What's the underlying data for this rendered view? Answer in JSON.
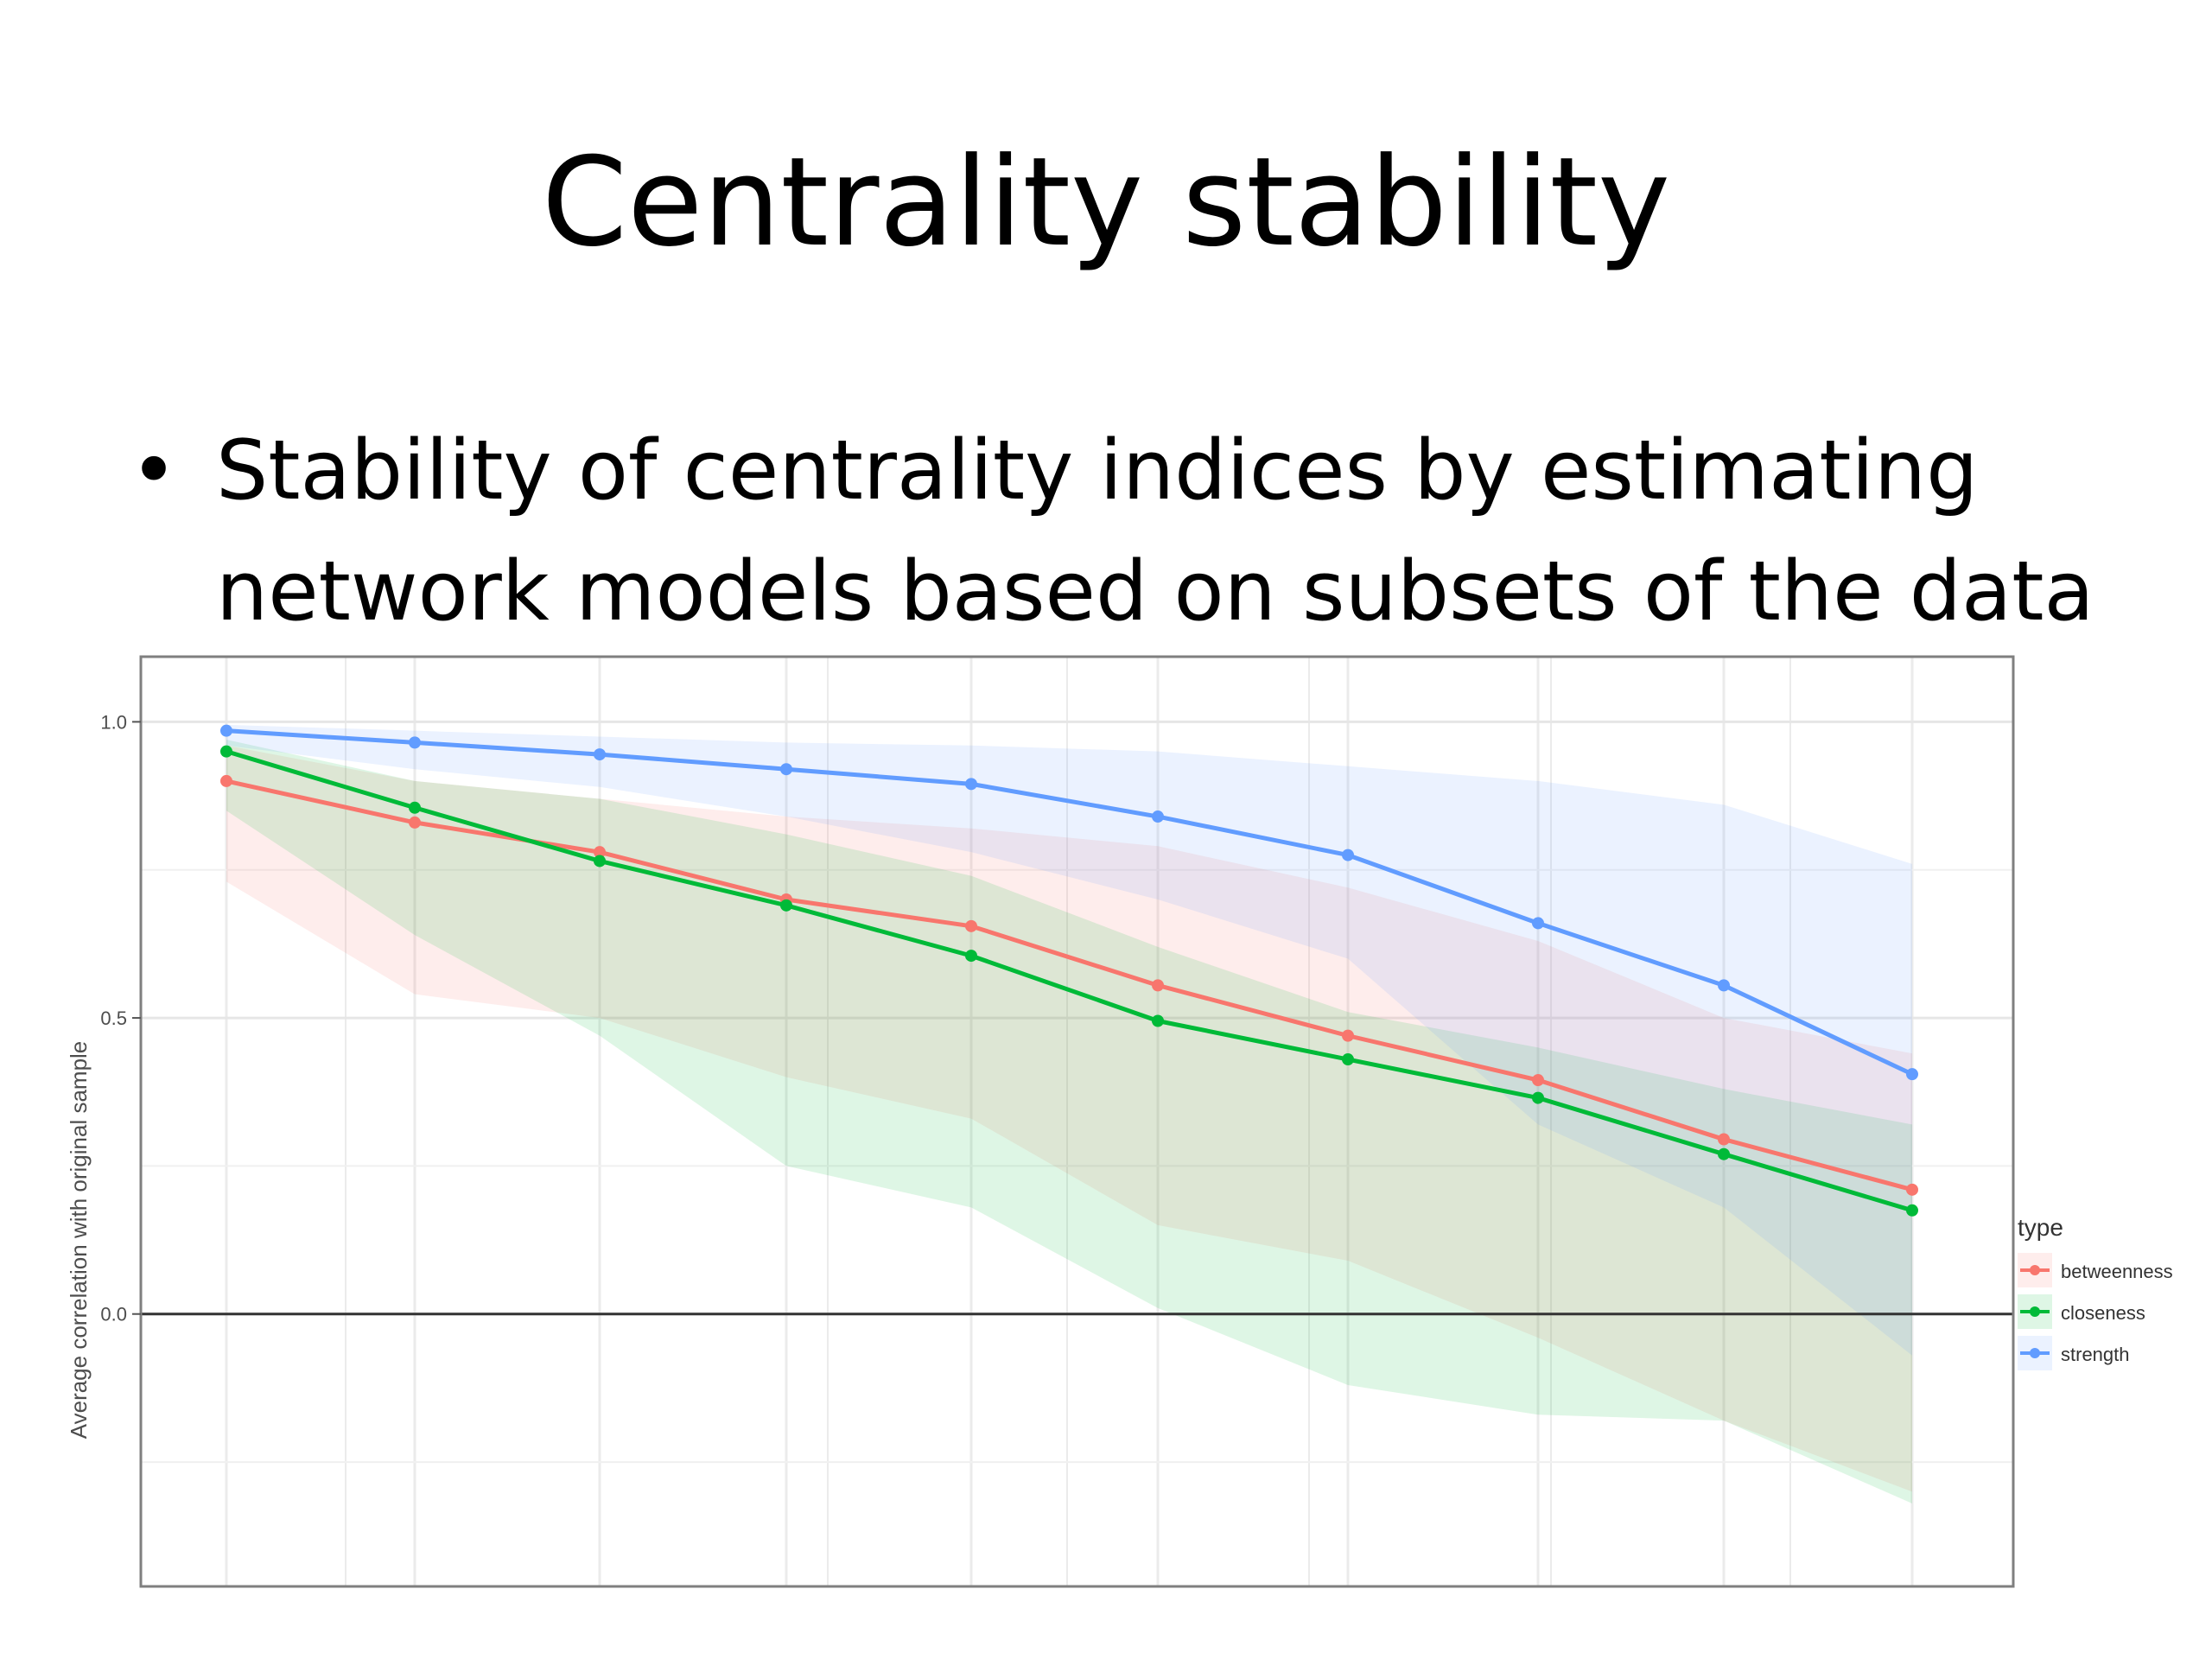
{
  "slide": {
    "title": "Centrality stability",
    "bullet_marker": "•",
    "bullet_text": "Stability of centrality indices by estimating network models based on subsets of the data"
  },
  "chart_data": {
    "type": "line",
    "title": "",
    "xlabel": "",
    "ylabel": "Average correlation with original sample",
    "ylim": [
      -0.46,
      1.11
    ],
    "yticks": [
      0.0,
      0.5,
      1.0
    ],
    "ytick_labels": [
      "0.0",
      "0.5",
      "1.0"
    ],
    "x": [
      1,
      2,
      3,
      4,
      5,
      6,
      7,
      8,
      9,
      10
    ],
    "grid": true,
    "hline": 0,
    "legend": {
      "title": "type",
      "position": "right"
    },
    "series": [
      {
        "name": "betweenness",
        "color": "#F8766D",
        "values": [
          0.9,
          0.83,
          0.78,
          0.7,
          0.655,
          0.555,
          0.47,
          0.395,
          0.295,
          0.21
        ],
        "upper": [
          0.96,
          0.9,
          0.87,
          0.84,
          0.82,
          0.79,
          0.72,
          0.63,
          0.5,
          0.44
        ],
        "lower": [
          0.73,
          0.54,
          0.5,
          0.4,
          0.33,
          0.15,
          0.09,
          -0.04,
          -0.18,
          -0.3
        ]
      },
      {
        "name": "closeness",
        "color": "#00BA38",
        "values": [
          0.95,
          0.855,
          0.765,
          0.69,
          0.605,
          0.495,
          0.43,
          0.365,
          0.27,
          0.175
        ],
        "upper": [
          0.97,
          0.9,
          0.87,
          0.81,
          0.74,
          0.62,
          0.51,
          0.45,
          0.38,
          0.32
        ],
        "lower": [
          0.85,
          0.64,
          0.47,
          0.25,
          0.18,
          0.01,
          -0.12,
          -0.17,
          -0.18,
          -0.32
        ]
      },
      {
        "name": "strength",
        "color": "#619CFF",
        "values": [
          0.985,
          0.965,
          0.945,
          0.92,
          0.895,
          0.84,
          0.775,
          0.66,
          0.555,
          0.405
        ],
        "upper": [
          0.995,
          0.985,
          0.975,
          0.965,
          0.96,
          0.95,
          0.925,
          0.9,
          0.86,
          0.76
        ],
        "lower": [
          0.96,
          0.92,
          0.89,
          0.84,
          0.78,
          0.7,
          0.6,
          0.32,
          0.18,
          -0.07
        ]
      }
    ]
  }
}
